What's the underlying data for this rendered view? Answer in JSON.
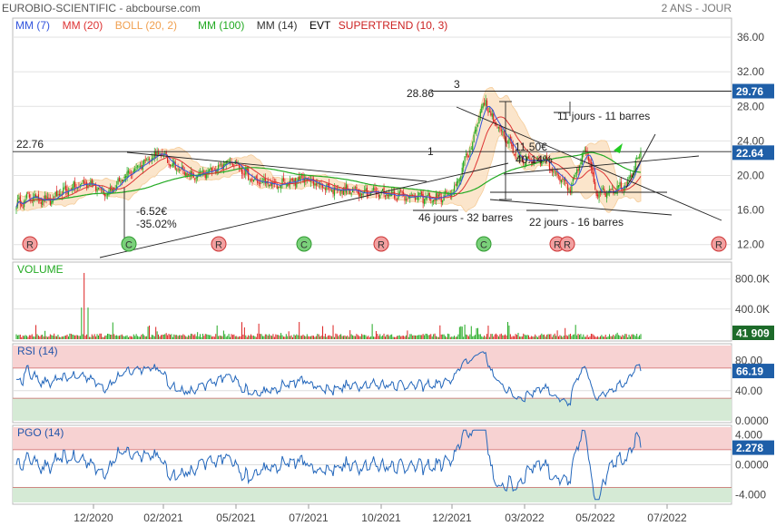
{
  "header": {
    "title": "EUROBIO-SCIENTIFIC - abcbourse.com",
    "period": "2 ANS - JOUR"
  },
  "indicators": [
    {
      "label": "MM (7)",
      "color": "#3355dd"
    },
    {
      "label": "MM (20)",
      "color": "#dd3333"
    },
    {
      "label": "BOLL (20, 2)",
      "color": "#f0a050"
    },
    {
      "label": "MM (100)",
      "color": "#22aa22"
    },
    {
      "label": "MM (14)",
      "color": "#333333"
    },
    {
      "label": "EVT",
      "color": "#000000"
    },
    {
      "label": "SUPERTREND (10, 3)",
      "color": "#cc2222"
    }
  ],
  "colors": {
    "up": "#22aa22",
    "down": "#dd2222",
    "ma7": "#3355dd",
    "ma20": "#dd3333",
    "ma100": "#22aa22",
    "boll": "#f5c78e",
    "rsi": "#2266bb",
    "pgo": "#2266bb",
    "badge": "#1f5fa8",
    "zone_high": "#f7d2d2",
    "zone_low": "#d5ead5"
  },
  "chart_data": [
    {
      "type": "candlestick",
      "name": "price",
      "yticks": [
        "12.00",
        "16.00",
        "20.00",
        "24.00",
        "28.00",
        "32.00",
        "36.00"
      ],
      "ylim": [
        10.5,
        38
      ],
      "xticks": [
        "12/2020",
        "02/2021",
        "05/2021",
        "07/2021",
        "10/2021",
        "12/2021",
        "03/2022",
        "05/2022",
        "07/2022"
      ],
      "last_price": "22.64",
      "resistance_label": "29.76",
      "resistance_value": 29.76,
      "horizontal_line": {
        "value": 22.76,
        "label": "22.76"
      },
      "annotations": [
        {
          "text": "28.86",
          "price": 28.86
        },
        {
          "text": "3"
        },
        {
          "text": "1"
        },
        {
          "text": "11 jours - 11 barres"
        },
        {
          "text": "11.50€"
        },
        {
          "text": "40.14%"
        },
        {
          "text": "-6.52€"
        },
        {
          "text": "-35.02%"
        },
        {
          "text": "46 jours - 32 barres"
        },
        {
          "text": "22 jours - 16 barres"
        }
      ],
      "signals": [
        "R",
        "C",
        "R",
        "C",
        "R",
        "C",
        "R",
        "R",
        "R"
      ]
    },
    {
      "type": "bar",
      "name": "volume",
      "title": "VOLUME",
      "yticks": [
        "400.0K",
        "800.0K"
      ],
      "ylim": [
        0,
        1000000
      ],
      "last": "41 909"
    },
    {
      "type": "line",
      "name": "rsi",
      "title": "RSI (14)",
      "yticks": [
        "0.0000",
        "40.00",
        "80.00"
      ],
      "ylim": [
        0,
        100
      ],
      "last": "66.19",
      "last_value": 66.19
    },
    {
      "type": "line",
      "name": "pgo",
      "title": "PGO (14)",
      "yticks": [
        "-4.000",
        "0.0000",
        "4.000"
      ],
      "ylim": [
        -5,
        5
      ],
      "last": "2.278",
      "last_value": 2.278
    }
  ]
}
